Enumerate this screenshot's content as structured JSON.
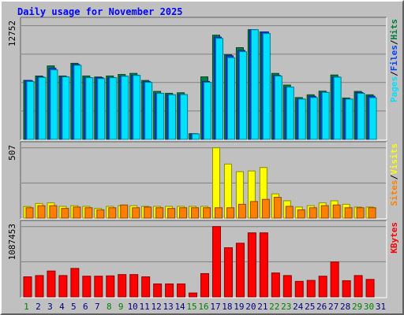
{
  "title": "Daily usage for November 2025",
  "colors": {
    "background": "#c0c0c0",
    "title": "#0000ff",
    "hits": "#008040",
    "files": "#0040ff",
    "pages": "#00e0ff",
    "visits": "#ffff00",
    "sites": "#ff8000",
    "kbytes": "#ff0000",
    "day_weekday": "#000080",
    "day_weekend": "#008000"
  },
  "chart_data": [
    {
      "type": "bar",
      "panel": "hits-files-pages",
      "ymax_label": "12752",
      "ylim": [
        0,
        12752
      ],
      "categories": [
        "1",
        "2",
        "3",
        "4",
        "5",
        "6",
        "7",
        "8",
        "9",
        "10",
        "11",
        "12",
        "13",
        "14",
        "15",
        "16",
        "17",
        "18",
        "19",
        "20",
        "21",
        "22",
        "23",
        "24",
        "25",
        "26",
        "27",
        "28",
        "29",
        "30",
        "31"
      ],
      "weekend_days": [
        "1",
        "8",
        "9",
        "15",
        "16",
        "22",
        "23",
        "29",
        "30"
      ],
      "grid": true,
      "series": [
        {
          "name": "Hits",
          "color": "#008040",
          "values": [
            6620,
            7110,
            8240,
            7110,
            8530,
            7110,
            7000,
            7110,
            7280,
            7400,
            6610,
            5380,
            5170,
            5230,
            640,
            7010,
            11690,
            9500,
            10290,
            12300,
            12050,
            7400,
            6090,
            4690,
            5000,
            5410,
            7220,
            4640,
            5380,
            5000,
            0
          ]
        },
        {
          "name": "Files",
          "color": "#0040ff",
          "values": [
            6600,
            7000,
            7980,
            7010,
            8410,
            6920,
            6920,
            6920,
            7080,
            7200,
            6480,
            5160,
            5010,
            5030,
            640,
            6500,
            11470,
            9380,
            9980,
            12300,
            12050,
            7170,
            5860,
            4520,
            4830,
            5270,
            7000,
            4520,
            5250,
            4840,
            0
          ]
        },
        {
          "name": "Pages",
          "color": "#00e0ff",
          "values": [
            6490,
            6950,
            7800,
            7010,
            8310,
            6920,
            6820,
            6920,
            7080,
            7180,
            6400,
            5160,
            5010,
            5030,
            620,
            6400,
            11330,
            9160,
            9840,
            12300,
            11870,
            7100,
            5860,
            4520,
            4690,
            5270,
            6980,
            4520,
            5160,
            4670,
            0
          ]
        }
      ]
    },
    {
      "type": "bar",
      "panel": "visits-sites",
      "ymax_label": "507",
      "ylim": [
        0,
        507
      ],
      "categories": [
        "1",
        "2",
        "3",
        "4",
        "5",
        "6",
        "7",
        "8",
        "9",
        "10",
        "11",
        "12",
        "13",
        "14",
        "15",
        "16",
        "17",
        "18",
        "19",
        "20",
        "21",
        "22",
        "23",
        "24",
        "25",
        "26",
        "27",
        "28",
        "29",
        "30",
        "31"
      ],
      "weekend_days": [
        "1",
        "8",
        "9",
        "15",
        "16",
        "22",
        "23",
        "29",
        "30"
      ],
      "grid": true,
      "series": [
        {
          "name": "Visits",
          "color": "#ffff00",
          "values": [
            84,
            106,
            110,
            85,
            90,
            85,
            70,
            85,
            90,
            90,
            85,
            85,
            85,
            85,
            85,
            85,
            507,
            390,
            335,
            340,
            365,
            175,
            125,
            80,
            90,
            110,
            125,
            100,
            80,
            80,
            0
          ]
        },
        {
          "name": "Sites",
          "color": "#ff8000",
          "values": [
            75,
            90,
            90,
            70,
            80,
            75,
            60,
            75,
            95,
            75,
            80,
            75,
            70,
            75,
            75,
            75,
            75,
            75,
            100,
            120,
            135,
            150,
            85,
            60,
            75,
            90,
            95,
            75,
            75,
            75,
            0
          ]
        }
      ]
    },
    {
      "type": "bar",
      "panel": "kbytes",
      "ymax_label": "1087453",
      "ylim": [
        0,
        1087453
      ],
      "categories": [
        "1",
        "2",
        "3",
        "4",
        "5",
        "6",
        "7",
        "8",
        "9",
        "10",
        "11",
        "12",
        "13",
        "14",
        "15",
        "16",
        "17",
        "18",
        "19",
        "20",
        "21",
        "22",
        "23",
        "24",
        "25",
        "26",
        "27",
        "28",
        "29",
        "30",
        "31"
      ],
      "weekend_days": [
        "1",
        "8",
        "9",
        "15",
        "16",
        "22",
        "23",
        "29",
        "30"
      ],
      "grid": true,
      "series": [
        {
          "name": "KBytes",
          "color": "#ff0000",
          "values": [
            310000,
            330000,
            400000,
            330000,
            440000,
            320000,
            320000,
            325000,
            345000,
            345000,
            310000,
            200000,
            200000,
            200000,
            60000,
            360000,
            1087453,
            760000,
            830000,
            990000,
            990000,
            370000,
            330000,
            240000,
            255000,
            320000,
            540000,
            250000,
            330000,
            270000,
            0
          ]
        }
      ]
    }
  ],
  "legends": {
    "top": [
      "Pages",
      "/",
      "Files",
      "/",
      "Hits"
    ],
    "middle": [
      "Sites",
      "/",
      "Visits"
    ],
    "bottom": [
      "KBytes"
    ]
  }
}
